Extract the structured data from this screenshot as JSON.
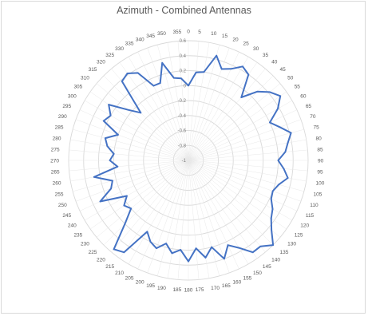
{
  "chart_data": {
    "type": "radar",
    "title": "Azimuth - Combined Antennas",
    "angles": [
      0,
      5,
      10,
      15,
      20,
      25,
      30,
      35,
      40,
      45,
      50,
      55,
      60,
      65,
      70,
      75,
      80,
      85,
      90,
      95,
      100,
      105,
      110,
      115,
      120,
      125,
      130,
      135,
      140,
      145,
      150,
      155,
      160,
      165,
      170,
      175,
      180,
      185,
      190,
      195,
      200,
      205,
      210,
      215,
      220,
      225,
      230,
      235,
      240,
      245,
      250,
      255,
      260,
      265,
      270,
      275,
      280,
      285,
      290,
      295,
      300,
      305,
      310,
      315,
      320,
      325,
      330,
      335,
      340,
      345,
      350,
      355
    ],
    "angle_labels": [
      "0",
      "5",
      "10",
      "15",
      "20",
      "25",
      "30",
      "35",
      "40",
      "45",
      "50",
      "55",
      "60",
      "65",
      "70",
      "75",
      "80",
      "85",
      "90",
      "95",
      "100",
      "105",
      "110",
      "115",
      "120",
      "125",
      "130",
      "135",
      "140",
      "145",
      "150",
      "155",
      "160",
      "165",
      "170",
      "175",
      "180",
      "185",
      "190",
      "195",
      "200",
      "205",
      "210",
      "215",
      "220",
      "225",
      "230",
      "235",
      "240",
      "245",
      "250",
      "255",
      "260",
      "265",
      "270",
      "275",
      "280",
      "285",
      "290",
      "295",
      "300",
      "305",
      "310",
      "315",
      "320",
      "325",
      "330",
      "335",
      "340",
      "345",
      "350",
      "355"
    ],
    "r_range": [
      -1,
      0.6
    ],
    "r_ticks": [
      -1,
      -0.8,
      -0.6,
      -0.4,
      -0.2,
      0,
      0.2,
      0.4,
      0.6
    ],
    "r_tick_labels": [
      "-1",
      "-0.8",
      "-0.6",
      "-0.4",
      "-0.2",
      "0",
      "0.2",
      "0.4",
      "0.6"
    ],
    "series": [
      {
        "color": "#4472c4",
        "values": [
          0.0,
          0.18,
          0.2,
          0.45,
          0.3,
          0.35,
          0.45,
          0.4,
          0.1,
          0.3,
          0.42,
          0.5,
          0.38,
          0.2,
          0.3,
          0.42,
          0.35,
          0.3,
          0.2,
          0.28,
          0.35,
          0.25,
          0.2,
          0.22,
          0.3,
          0.35,
          0.45,
          0.6,
          0.5,
          0.5,
          0.35,
          0.25,
          0.4,
          0.2,
          0.32,
          0.18,
          0.35,
          0.2,
          0.26,
          0.15,
          0.25,
          0.2,
          0.1,
          0.5,
          0.55,
          0.2,
          0.0,
          0.05,
          -0.05,
          0.3,
          0.1,
          0.05,
          0.28,
          -0.05,
          0.05,
          0.0,
          0.1,
          0.15,
          0.0,
          0.25,
          0.2,
          0.3,
          0.05,
          -0.1,
          0.38,
          0.42,
          0.35,
          0.1,
          0.1,
          0.35,
          0.12,
          0.1
        ]
      }
    ]
  }
}
